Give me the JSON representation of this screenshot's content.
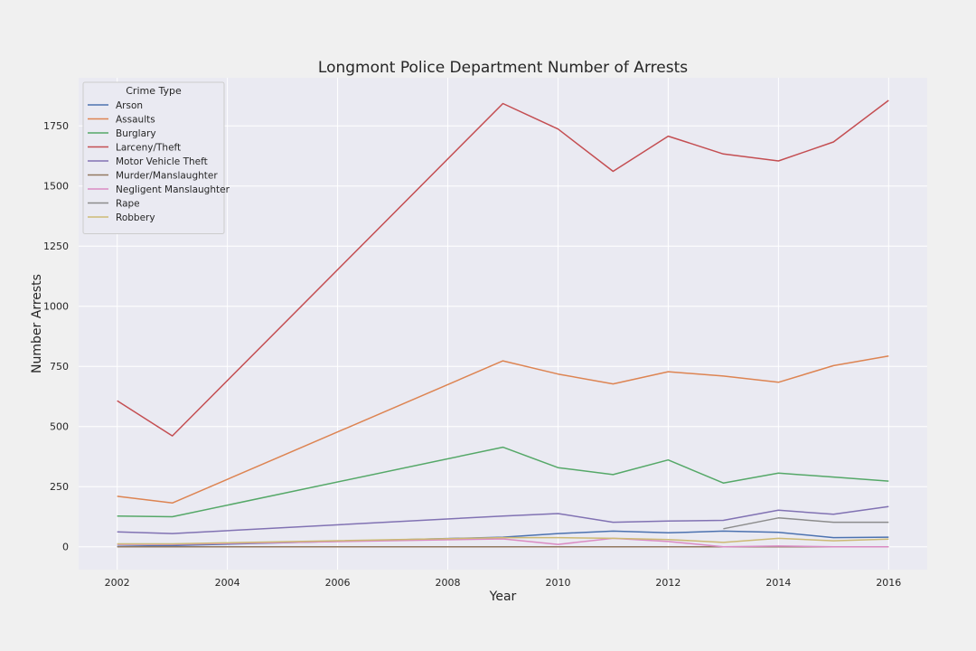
{
  "chart_data": {
    "type": "line",
    "title": "Longmont Police Department Number of Arrests",
    "xlabel": "Year",
    "ylabel": "Number Arrests",
    "xlim": [
      2001.3,
      2016.7
    ],
    "ylim": [
      -95,
      1950
    ],
    "xticks": [
      "2002",
      "2004",
      "2006",
      "2008",
      "2010",
      "2012",
      "2014",
      "2016"
    ],
    "yticks": [
      "0",
      "250",
      "500",
      "750",
      "1000",
      "1250",
      "1500",
      "1750"
    ],
    "grid": true,
    "legend": {
      "title": "Crime Type",
      "position": "top-left"
    },
    "x": [
      2002,
      2003,
      2009,
      2010,
      2011,
      2012,
      2013,
      2014,
      2015,
      2016
    ],
    "series": [
      {
        "name": "Arson",
        "color": "#4c72b0",
        "values": [
          2,
          5,
          40,
          55,
          65,
          58,
          65,
          60,
          38,
          40
        ]
      },
      {
        "name": "Assaults",
        "color": "#dd8452",
        "values": [
          210,
          182,
          773,
          718,
          677,
          728,
          710,
          684,
          753,
          793
        ]
      },
      {
        "name": "Burglary",
        "color": "#55a868",
        "values": [
          128,
          125,
          414,
          329,
          300,
          361,
          265,
          306,
          290,
          273
        ]
      },
      {
        "name": "Larceny/Theft",
        "color": "#c44e52",
        "values": [
          607,
          461,
          1843,
          1737,
          1561,
          1707,
          1633,
          1604,
          1683,
          1856
        ]
      },
      {
        "name": "Motor Vehicle Theft",
        "color": "#8172b3",
        "values": [
          62,
          55,
          128,
          138,
          102,
          107,
          110,
          152,
          135,
          167
        ]
      },
      {
        "name": "Murder/Manslaughter",
        "color": "#937860",
        "values": [
          0,
          0,
          0,
          0,
          0,
          0,
          0,
          0,
          0,
          0
        ]
      },
      {
        "name": "Negligent Manslaughter",
        "color": "#da8bc3",
        "values": [
          10,
          10,
          33,
          10,
          35,
          22,
          0,
          3,
          0,
          0
        ]
      },
      {
        "name": "Rape",
        "color": "#8c8c8c",
        "values": [
          null,
          null,
          null,
          null,
          null,
          null,
          75,
          120,
          102,
          102
        ]
      },
      {
        "name": "Robbery",
        "color": "#ccb974",
        "values": [
          12,
          12,
          38,
          38,
          35,
          30,
          18,
          35,
          25,
          32
        ]
      }
    ]
  }
}
